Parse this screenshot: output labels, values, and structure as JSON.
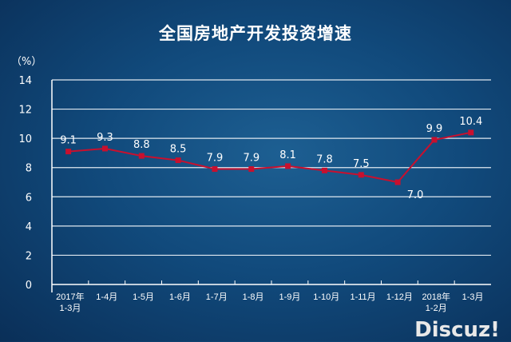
{
  "watermark": "Discuz!",
  "chart_data": {
    "type": "line",
    "title": "全国房地产开发投资增速",
    "ylabel": "（%）",
    "xlabel": "",
    "categories": [
      "2017年\n1-3月",
      "1-4月",
      "1-5月",
      "1-6月",
      "1-7月",
      "1-8月",
      "1-9月",
      "1-10月",
      "1-11月",
      "1-12月",
      "2018年\n1-2月",
      "1-3月"
    ],
    "series": [
      {
        "values": [
          9.1,
          9.3,
          8.8,
          8.5,
          7.9,
          7.9,
          8.1,
          7.8,
          7.5,
          7.0,
          9.9,
          10.4
        ],
        "color": "#c8102e"
      }
    ],
    "ylim": [
      0,
      14
    ],
    "yticks": [
      0,
      2,
      4,
      6,
      8,
      10,
      12,
      14
    ],
    "grid": true,
    "data_labels": [
      "9.1",
      "9.3",
      "8.8",
      "8.5",
      "7.9",
      "7.9",
      "8.1",
      "7.8",
      "7.5",
      "7.0",
      "9.9",
      "10.4"
    ]
  }
}
